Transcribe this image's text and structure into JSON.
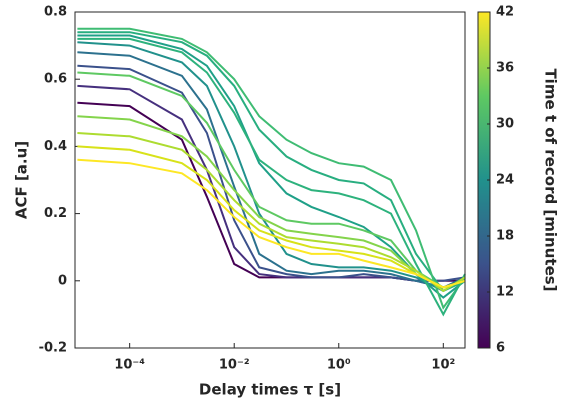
{
  "chart_data": {
    "type": "line",
    "xlabel": "Delay times τ [s]",
    "ylabel": "ACF [a.u]",
    "xscale": "log",
    "xlim": [
      9e-06,
      260
    ],
    "ylim": [
      -0.2,
      0.8
    ],
    "xticks": [
      {
        "value": 0.0001,
        "label": "10⁻⁴"
      },
      {
        "value": 0.01,
        "label": "10⁻²"
      },
      {
        "value": 1,
        "label": "10⁰"
      },
      {
        "value": 100,
        "label": "10²"
      }
    ],
    "yticks": [
      -0.2,
      0,
      0.2,
      0.4,
      0.6,
      0.8
    ],
    "x": [
      1e-05,
      0.0001,
      0.001,
      0.003,
      0.01,
      0.03,
      0.1,
      0.3,
      1,
      3,
      10,
      30,
      100,
      260
    ],
    "series": [
      {
        "color": "#440154",
        "values": [
          0.53,
          0.52,
          0.42,
          0.25,
          0.05,
          0.01,
          0.01,
          0.01,
          0.01,
          0.01,
          0.01,
          0.0,
          0.0,
          0.0
        ]
      },
      {
        "color": "#46307e",
        "values": [
          0.58,
          0.57,
          0.48,
          0.33,
          0.1,
          0.02,
          0.01,
          0.01,
          0.01,
          0.01,
          0.01,
          0.0,
          -0.02,
          0.0
        ]
      },
      {
        "color": "#3b518b",
        "values": [
          0.64,
          0.63,
          0.56,
          0.44,
          0.18,
          0.04,
          0.02,
          0.01,
          0.01,
          0.02,
          0.01,
          0.0,
          0.0,
          0.01
        ]
      },
      {
        "color": "#2c718e",
        "values": [
          0.68,
          0.67,
          0.61,
          0.51,
          0.28,
          0.08,
          0.03,
          0.02,
          0.03,
          0.03,
          0.02,
          0.0,
          -0.02,
          0.01
        ]
      },
      {
        "color": "#21918c",
        "values": [
          0.71,
          0.7,
          0.65,
          0.58,
          0.4,
          0.2,
          0.08,
          0.05,
          0.04,
          0.04,
          0.03,
          0.01,
          -0.03,
          0.0
        ]
      },
      {
        "color": "#1fa088",
        "values": [
          0.73,
          0.73,
          0.69,
          0.64,
          0.52,
          0.35,
          0.26,
          0.22,
          0.19,
          0.16,
          0.1,
          0.02,
          -0.05,
          0.0
        ]
      },
      {
        "color": "#28ae80",
        "values": [
          0.74,
          0.74,
          0.71,
          0.67,
          0.58,
          0.45,
          0.37,
          0.33,
          0.3,
          0.29,
          0.24,
          0.08,
          -0.03,
          0.0
        ]
      },
      {
        "color": "#3fbc73",
        "values": [
          0.75,
          0.75,
          0.72,
          0.68,
          0.6,
          0.49,
          0.42,
          0.38,
          0.35,
          0.34,
          0.3,
          0.15,
          -0.08,
          0.01
        ]
      },
      {
        "color": "#2db27d",
        "values": [
          0.72,
          0.72,
          0.68,
          0.62,
          0.5,
          0.36,
          0.3,
          0.27,
          0.26,
          0.24,
          0.2,
          0.05,
          -0.1,
          0.02
        ]
      },
      {
        "color": "#5ec962",
        "values": [
          0.62,
          0.61,
          0.55,
          0.47,
          0.33,
          0.22,
          0.18,
          0.17,
          0.17,
          0.15,
          0.12,
          0.03,
          -0.02,
          0.0
        ]
      },
      {
        "color": "#84d44b",
        "values": [
          0.49,
          0.48,
          0.43,
          0.37,
          0.27,
          0.19,
          0.15,
          0.14,
          0.13,
          0.12,
          0.09,
          0.02,
          -0.02,
          0.0
        ]
      },
      {
        "color": "#addc30",
        "values": [
          0.44,
          0.43,
          0.39,
          0.33,
          0.24,
          0.17,
          0.13,
          0.12,
          0.11,
          0.1,
          0.07,
          0.03,
          -0.03,
          0.01
        ]
      },
      {
        "color": "#d8e219",
        "values": [
          0.4,
          0.39,
          0.35,
          0.3,
          0.21,
          0.15,
          0.12,
          0.1,
          0.09,
          0.08,
          0.06,
          0.02,
          -0.02,
          0.0
        ]
      },
      {
        "color": "#fde725",
        "values": [
          0.36,
          0.35,
          0.32,
          0.27,
          0.19,
          0.13,
          0.1,
          0.08,
          0.08,
          0.06,
          0.04,
          0.02,
          -0.02,
          0.0
        ]
      }
    ],
    "colorbar": {
      "label": "Time t of record [minutes]",
      "clim": [
        6,
        42
      ],
      "ticks": [
        6,
        12,
        18,
        24,
        30,
        36,
        42
      ],
      "colormap": [
        "#440154",
        "#3b528b",
        "#21918c",
        "#5ec962",
        "#fde725"
      ]
    }
  }
}
